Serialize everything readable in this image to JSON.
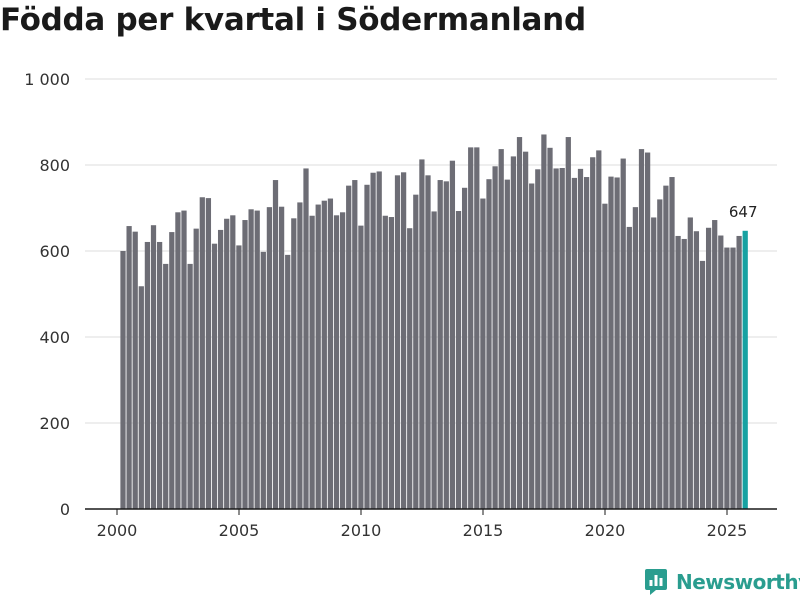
{
  "chart_data": {
    "type": "bar",
    "title": "Födda per kvartal i Södermanland",
    "xlabel": "",
    "ylabel": "",
    "ylim": [
      0,
      1000
    ],
    "yticks": [
      0,
      200,
      400,
      600,
      800,
      1000
    ],
    "ytick_labels": [
      "0",
      "200",
      "400",
      "600",
      "800",
      "1 000"
    ],
    "xlim": [
      1999.25,
      2026.25
    ],
    "xticks": [
      2000,
      2005,
      2010,
      2015,
      2020,
      2025
    ],
    "xtick_labels": [
      "2000",
      "2005",
      "2010",
      "2015",
      "2020",
      "2025"
    ],
    "start_year": 2000,
    "grid": true,
    "highlight_color": "#17a2a2",
    "bar_color": "#6d6d75",
    "highlight_label": "647",
    "values": [
      600,
      658,
      645,
      518,
      621,
      660,
      621,
      570,
      644,
      690,
      694,
      570,
      652,
      725,
      723,
      617,
      649,
      675,
      683,
      613,
      672,
      697,
      694,
      598,
      702,
      765,
      703,
      591,
      676,
      713,
      792,
      682,
      708,
      717,
      722,
      683,
      690,
      752,
      765,
      659,
      754,
      782,
      785,
      682,
      679,
      776,
      783,
      653,
      731,
      813,
      776,
      692,
      765,
      762,
      810,
      693,
      747,
      841,
      841,
      722,
      767,
      797,
      837,
      766,
      820,
      865,
      831,
      757,
      790,
      871,
      840,
      792,
      793,
      865,
      770,
      791,
      772,
      818,
      834,
      710,
      773,
      771,
      815,
      656,
      702,
      837,
      829,
      678,
      720,
      752,
      772,
      635,
      628,
      678,
      646,
      577,
      654,
      672,
      636,
      608,
      608,
      635,
      647
    ]
  },
  "brand": {
    "name": "Newsworthy"
  }
}
